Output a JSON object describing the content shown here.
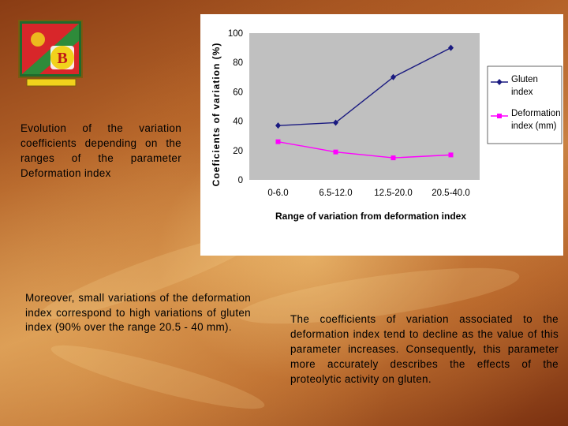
{
  "caption": "Evolution of the variation coefficients depending on the ranges of the parameter Deformation index",
  "paragraph_left": "Moreover, small variations of the deformation index correspond to high variations of gluten index (90% over the range 20.5 - 40 mm).",
  "paragraph_right": "The coefficients of variation associated to the deformation index tend to decline as the value of this parameter increases. Consequently, this parameter more accurately describes the effects of the proteolytic activity on gluten.",
  "logo": {
    "letter": "B"
  },
  "colors": {
    "gluten": "#1a1a80",
    "deformation": "#ff00ff",
    "plot_bg": "#c0c0c0",
    "logo_red": "#d8262a",
    "logo_green": "#2e8b3a",
    "logo_yellow": "#f1d21c"
  },
  "chart_data": {
    "type": "line",
    "categories": [
      "0-6.0",
      "6.5-12.0",
      "12.5-20.0",
      "20.5-40.0"
    ],
    "series": [
      {
        "name": "Gluten index",
        "values": [
          37,
          39,
          70,
          90
        ]
      },
      {
        "name": "Deformation index (mm)",
        "values": [
          26,
          19,
          15,
          17
        ]
      }
    ],
    "ylabel": "Coeficients of variation (%)",
    "xlabel": "Range of variation from deformation index",
    "ylim": [
      0,
      100
    ],
    "yticks": [
      0,
      20,
      40,
      60,
      80,
      100
    ],
    "grid": false,
    "legend": "right"
  }
}
